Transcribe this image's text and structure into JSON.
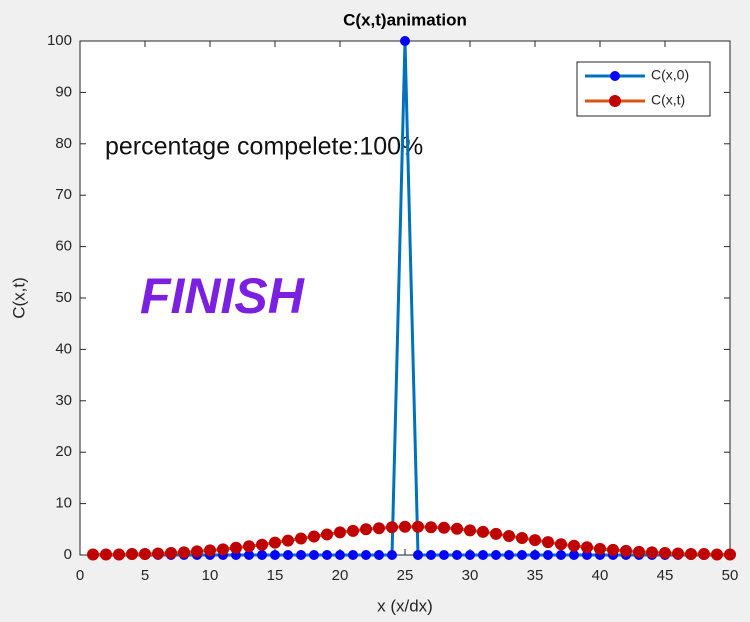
{
  "chart_data": {
    "type": "line",
    "title": "C(x,t)animation",
    "x_label": "x     (x/dx)",
    "y_label": "C(x,t)",
    "annotations": [
      "percentage compelete:100%",
      "FINISH"
    ],
    "x": [
      1,
      2,
      3,
      4,
      5,
      6,
      7,
      8,
      9,
      10,
      11,
      12,
      13,
      14,
      15,
      16,
      17,
      18,
      19,
      20,
      21,
      22,
      23,
      24,
      25,
      26,
      27,
      28,
      29,
      30,
      31,
      32,
      33,
      34,
      35,
      36,
      37,
      38,
      39,
      40,
      41,
      42,
      43,
      44,
      45,
      46,
      47,
      48,
      49,
      50
    ],
    "series": [
      {
        "name": "C(x,0)",
        "color": "#0072bd",
        "marker_color": "#0000ff",
        "values": [
          0,
          0,
          0,
          0,
          0,
          0,
          0,
          0,
          0,
          0,
          0,
          0,
          0,
          0,
          0,
          0,
          0,
          0,
          0,
          0,
          0,
          0,
          0,
          0,
          100,
          0,
          0,
          0,
          0,
          0,
          0,
          0,
          0,
          0,
          0,
          0,
          0,
          0,
          0,
          0,
          0,
          0,
          0,
          0,
          0,
          0,
          0,
          0,
          0,
          0
        ]
      },
      {
        "name": "C(x,t)",
        "color": "#d95319",
        "marker_color": "#c00000",
        "values": [
          0.1,
          0.1,
          0.1,
          0.2,
          0.2,
          0.3,
          0.4,
          0.5,
          0.7,
          0.9,
          1.1,
          1.4,
          1.7,
          2.0,
          2.4,
          2.8,
          3.2,
          3.6,
          4.0,
          4.4,
          4.7,
          5.0,
          5.2,
          5.4,
          5.5,
          5.5,
          5.4,
          5.3,
          5.1,
          4.8,
          4.5,
          4.1,
          3.7,
          3.3,
          2.9,
          2.5,
          2.1,
          1.8,
          1.5,
          1.2,
          1.0,
          0.8,
          0.6,
          0.5,
          0.4,
          0.3,
          0.2,
          0.2,
          0.1,
          0.1
        ]
      }
    ],
    "xlim": [
      0,
      50
    ],
    "xticks": [
      0,
      5,
      10,
      15,
      20,
      25,
      30,
      35,
      40,
      45,
      50
    ],
    "ylim": [
      0,
      100
    ],
    "yticks": [
      0,
      10,
      20,
      30,
      40,
      50,
      60,
      70,
      80,
      90,
      100
    ],
    "legend_position": "upper right"
  }
}
